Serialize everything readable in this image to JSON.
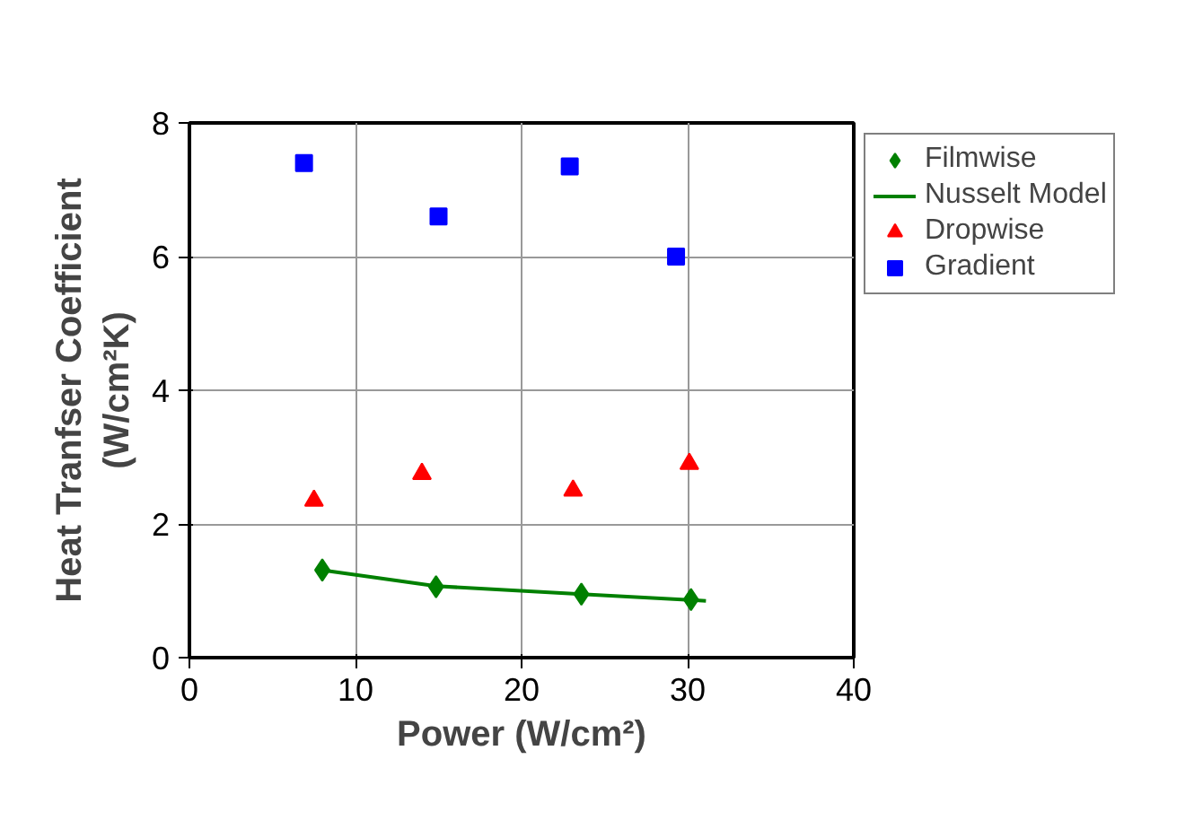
{
  "chart_data": {
    "type": "scatter",
    "xlabel": "Power (W/cm²)",
    "ylabel": "Heat Tranfser Coefficient\n(W/cm²K)",
    "xlim": [
      0,
      40
    ],
    "xticks": [
      0,
      10,
      20,
      30,
      40
    ],
    "ylim": [
      0,
      8
    ],
    "yticks": [
      0,
      2,
      4,
      6,
      8
    ],
    "grid": true,
    "legend": "top right",
    "series": [
      {
        "name": "Filmwise",
        "marker": "diamond",
        "color": "#008000",
        "x": [
          8.0,
          14.85,
          23.6,
          30.2
        ],
        "values": [
          1.31,
          1.06,
          0.95,
          0.87
        ]
      },
      {
        "name": "Nusselt Model",
        "type": "line",
        "marker": "none",
        "line_style": "solid",
        "color": "#008000",
        "x": [
          8.0,
          14.85,
          23.6,
          31.1
        ],
        "values": [
          1.31,
          1.07,
          0.95,
          0.85
        ]
      },
      {
        "name": "Dropwise",
        "marker": "triangle",
        "color": "#ff0000",
        "x": [
          7.5,
          14.0,
          23.1,
          30.1
        ],
        "values": [
          2.35,
          2.75,
          2.5,
          2.9
        ]
      },
      {
        "name": "Gradient",
        "marker": "square",
        "color": "#0000ff",
        "x": [
          6.9,
          15.0,
          22.9,
          29.3
        ],
        "values": [
          7.4,
          6.6,
          7.35,
          6.0
        ]
      }
    ]
  }
}
